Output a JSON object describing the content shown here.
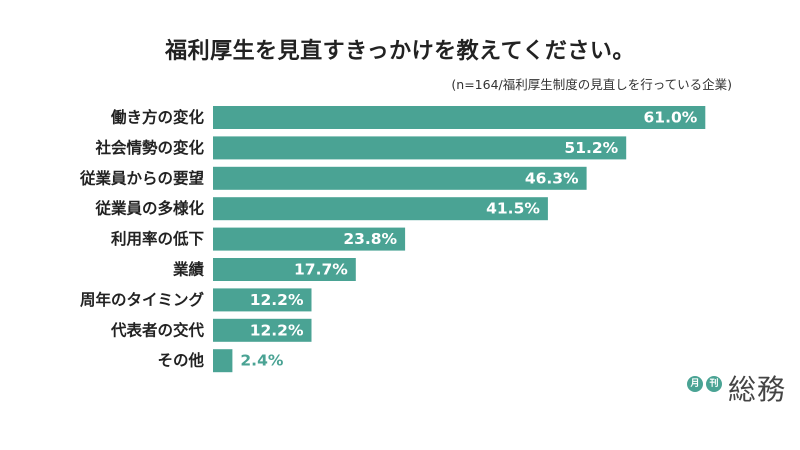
{
  "header": {
    "title": "福利厚生を見直すきっかけを教えてください。",
    "note": "(n=164/福利厚生制度の見直しを行っている企業)"
  },
  "chart_data": {
    "type": "bar",
    "orientation": "horizontal",
    "categories": [
      "働き方の変化",
      "社会情勢の変化",
      "従業員からの要望",
      "従業員の多様化",
      "利用率の低下",
      "業績",
      "周年のタイミング",
      "代表者の交代",
      "その他"
    ],
    "values": [
      61.0,
      51.2,
      46.3,
      41.5,
      23.8,
      17.7,
      12.2,
      12.2,
      2.4
    ],
    "value_labels": [
      "61.0%",
      "51.2%",
      "46.3%",
      "41.5%",
      "23.8%",
      "17.7%",
      "12.2%",
      "12.2%",
      "2.4%"
    ],
    "xlim": [
      0,
      100
    ],
    "grid": false,
    "legend": "none",
    "bar_color": "#4aa394"
  },
  "logo": {
    "badge_1": "月",
    "badge_2": "刊",
    "wordmark": "総務"
  }
}
